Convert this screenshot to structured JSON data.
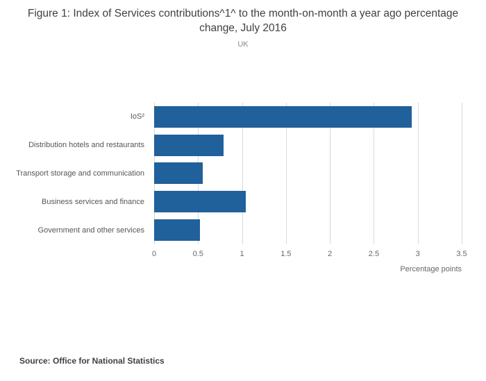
{
  "title": "Figure 1: Index of Services contributions^1^ to the month-on-month a year ago percentage change, July 2016",
  "subtitle": "UK",
  "source": "Source: Office for National Statistics",
  "chart_data": {
    "type": "bar",
    "orientation": "horizontal",
    "title": "Figure 1: Index of Services contributions^1^ to the month-on-month a year ago percentage change, July 2016",
    "subtitle": "UK",
    "categories": [
      "IoS²",
      "Distribution hotels and restaurants",
      "Transport storage and communication",
      "Business services and finance",
      "Government and other services"
    ],
    "values": [
      2.93,
      0.79,
      0.55,
      1.04,
      0.52
    ],
    "xlabel": "Percentage points",
    "ylabel": "",
    "xlim": [
      0,
      3.5
    ],
    "xtick_labels": [
      "0",
      "0.5",
      "1",
      "1.5",
      "2",
      "2.5",
      "3",
      "3.5"
    ],
    "grid": true,
    "bar_color": "#20609b",
    "gridline_color": "#d9d9d9",
    "legend": "none"
  }
}
